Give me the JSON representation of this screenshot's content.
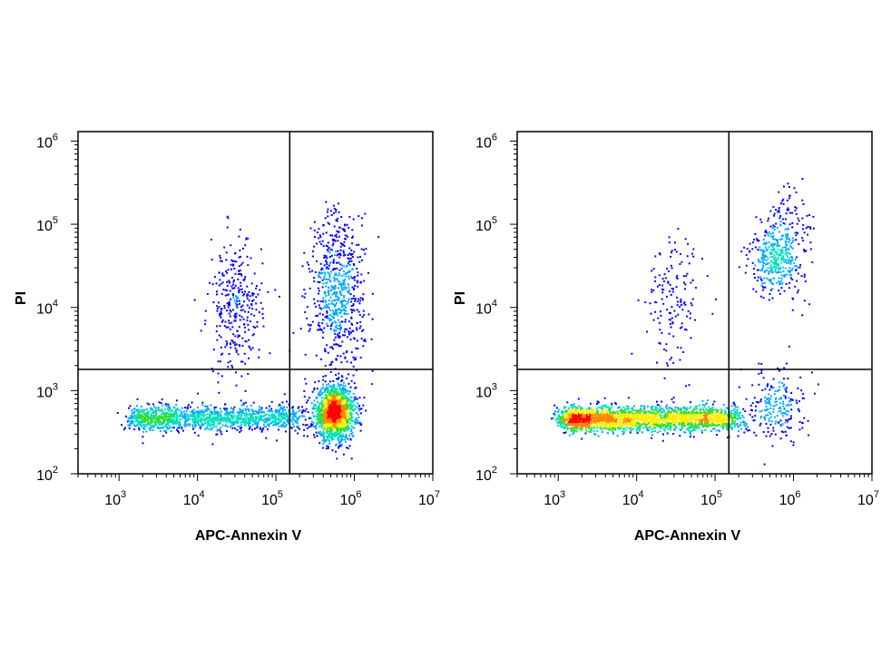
{
  "chart_data": [
    {
      "type": "scatter",
      "style": "density pseudocolor dot plot",
      "xlabel": "APC-Annexin V",
      "ylabel": "PI",
      "xscale": "log",
      "yscale": "log",
      "xlim": [
        300,
        10000000
      ],
      "ylim": [
        100,
        1300000
      ],
      "x_ticks": [
        {
          "base": "10",
          "exp": "3",
          "value": 1000
        },
        {
          "base": "10",
          "exp": "4",
          "value": 10000
        },
        {
          "base": "10",
          "exp": "5",
          "value": 100000
        },
        {
          "base": "10",
          "exp": "6",
          "value": 1000000
        },
        {
          "base": "10",
          "exp": "7",
          "value": 10000000
        }
      ],
      "y_ticks": [
        {
          "base": "10",
          "exp": "2",
          "value": 100
        },
        {
          "base": "10",
          "exp": "3",
          "value": 1000
        },
        {
          "base": "10",
          "exp": "4",
          "value": 10000
        },
        {
          "base": "10",
          "exp": "5",
          "value": 100000
        },
        {
          "base": "10",
          "exp": "6",
          "value": 1000000
        }
      ],
      "quadrant_gate": {
        "x": 150000,
        "y": 1800
      },
      "populations": [
        {
          "x_range": [
            1500,
            200000
          ],
          "y_center": 480,
          "count": 1300
        },
        {
          "x_center": 550000,
          "y_center": 550,
          "count": 1500
        },
        {
          "x_center": 600000,
          "y_center": 12000,
          "count": 550
        },
        {
          "x_center": 600000,
          "y_center": 60000,
          "count": 120
        },
        {
          "x_center": 30000,
          "y_center": 10000,
          "count": 320
        }
      ]
    },
    {
      "type": "scatter",
      "style": "density pseudocolor dot plot",
      "xlabel": "APC-Annexin V",
      "ylabel": "PI",
      "xscale": "log",
      "yscale": "log",
      "xlim": [
        300,
        10000000
      ],
      "ylim": [
        100,
        1300000
      ],
      "x_ticks": [
        {
          "base": "10",
          "exp": "3",
          "value": 1000
        },
        {
          "base": "10",
          "exp": "4",
          "value": 10000
        },
        {
          "base": "10",
          "exp": "5",
          "value": 100000
        },
        {
          "base": "10",
          "exp": "6",
          "value": 1000000
        },
        {
          "base": "10",
          "exp": "7",
          "value": 10000000
        }
      ],
      "y_ticks": [
        {
          "base": "10",
          "exp": "2",
          "value": 100
        },
        {
          "base": "10",
          "exp": "3",
          "value": 1000
        },
        {
          "base": "10",
          "exp": "4",
          "value": 10000
        },
        {
          "base": "10",
          "exp": "5",
          "value": 100000
        },
        {
          "base": "10",
          "exp": "6",
          "value": 1000000
        }
      ],
      "quadrant_gate": {
        "x": 150000,
        "y": 1800
      },
      "populations": [
        {
          "x_range": [
            1200,
            200000
          ],
          "y_center": 470,
          "count": 2200
        },
        {
          "x_center": 600000,
          "y_center": 700,
          "count": 220
        },
        {
          "x_center": 600000,
          "y_center": 40000,
          "count": 380
        },
        {
          "x_center": 900000,
          "y_center": 110000,
          "count": 80
        },
        {
          "x_center": 30000,
          "y_center": 12000,
          "count": 150
        }
      ]
    }
  ],
  "colors": {
    "density_ramp": [
      "#0000ff",
      "#00a8ff",
      "#00e0c0",
      "#33dd33",
      "#ffee00",
      "#ff8800",
      "#ff0000"
    ],
    "axis": "#000000",
    "background": "#ffffff"
  }
}
